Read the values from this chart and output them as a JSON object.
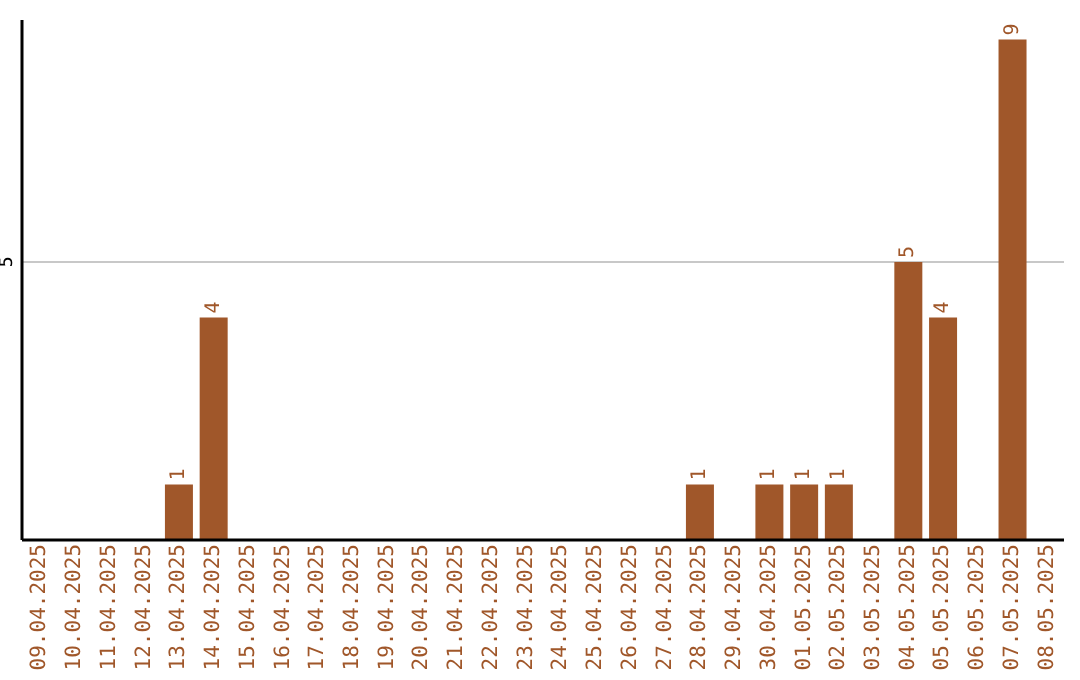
{
  "chart_data": {
    "type": "bar",
    "categories": [
      "09.04.2025",
      "10.04.2025",
      "11.04.2025",
      "12.04.2025",
      "13.04.2025",
      "14.04.2025",
      "15.04.2025",
      "16.04.2025",
      "17.04.2025",
      "18.04.2025",
      "19.04.2025",
      "20.04.2025",
      "21.04.2025",
      "22.04.2025",
      "23.04.2025",
      "24.04.2025",
      "25.04.2025",
      "26.04.2025",
      "27.04.2025",
      "28.04.2025",
      "29.04.2025",
      "30.04.2025",
      "01.05.2025",
      "02.05.2025",
      "03.05.2025",
      "04.05.2025",
      "05.05.2025",
      "06.05.2025",
      "07.05.2025",
      "08.05.2025"
    ],
    "values": [
      0,
      0,
      0,
      0,
      1,
      4,
      0,
      0,
      0,
      0,
      0,
      0,
      0,
      0,
      0,
      0,
      0,
      0,
      0,
      1,
      0,
      1,
      1,
      1,
      0,
      5,
      4,
      0,
      9,
      0
    ],
    "value_labels": [
      null,
      null,
      null,
      null,
      "1",
      "4",
      null,
      null,
      null,
      null,
      null,
      null,
      null,
      null,
      null,
      null,
      null,
      null,
      null,
      "1",
      null,
      "1",
      "1",
      "1",
      null,
      "5",
      "4",
      null,
      "9",
      null
    ],
    "color": "#a0572a",
    "ylim": [
      0,
      9.35
    ],
    "yticks": [
      5
    ],
    "grid": "y"
  }
}
